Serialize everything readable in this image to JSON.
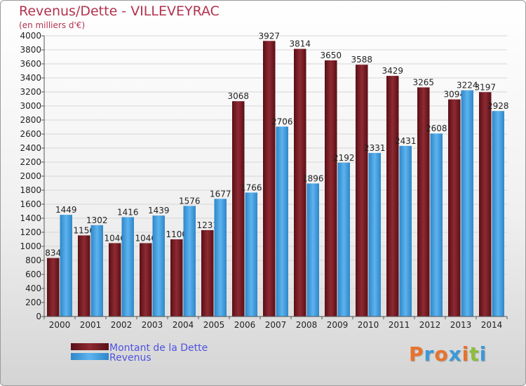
{
  "title": "Revenus/Dette - VILLEVEYRAC",
  "subtitle": "(en milliers d'€)",
  "logo": {
    "text": "Proxiti",
    "colors": [
      "#e8732c",
      "#3a9ad9",
      "#e8732c",
      "#3a9ad9",
      "#e8732c",
      "#8bbf3a",
      "#3a9ad9"
    ]
  },
  "chart_data": {
    "type": "bar",
    "categories": [
      "2000",
      "2001",
      "2002",
      "2003",
      "2004",
      "2005",
      "2006",
      "2007",
      "2008",
      "2009",
      "2010",
      "2011",
      "2012",
      "2013",
      "2014"
    ],
    "series": [
      {
        "name": "Montant de la Dette",
        "color": "#7b1a22",
        "values": [
          834,
          1156,
          1046,
          1046,
          1100,
          1231,
          3068,
          3927,
          3814,
          3650,
          3588,
          3429,
          3265,
          3094,
          3197
        ]
      },
      {
        "name": "Revenus",
        "color": "#4ea6e3",
        "values": [
          1449,
          1302,
          1416,
          1439,
          1576,
          1677,
          1766,
          2706,
          1896,
          2192,
          2331,
          2431,
          2608,
          3224,
          2928
        ]
      }
    ],
    "ylim": [
      0,
      4000
    ],
    "yticks": [
      0,
      200,
      400,
      600,
      800,
      1000,
      1200,
      1400,
      1600,
      1800,
      2000,
      2200,
      2400,
      2600,
      2800,
      3000,
      3200,
      3400,
      3600,
      3800,
      4000
    ],
    "grid": true,
    "legend": "bottom-left"
  }
}
